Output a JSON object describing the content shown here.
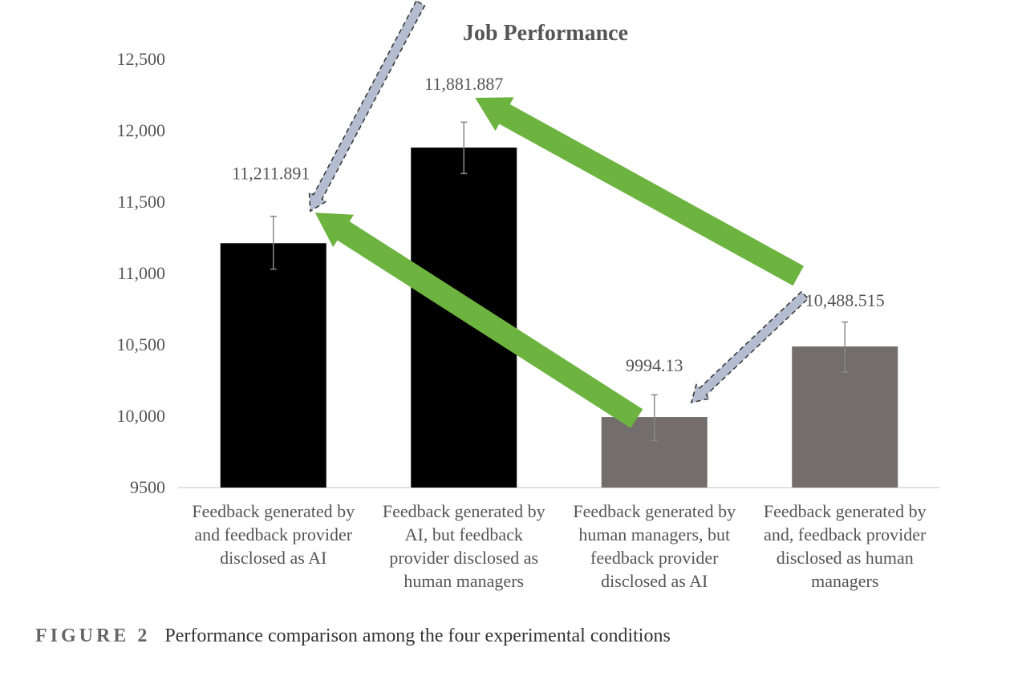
{
  "chart_data": {
    "type": "bar",
    "title": "Job Performance",
    "categories": [
      [
        "Feedback generated by",
        "and feedback provider",
        "disclosed as AI"
      ],
      [
        "Feedback generated by",
        "AI, but feedback",
        "provider disclosed as",
        "human managers"
      ],
      [
        "Feedback generated by",
        "human managers, but",
        "feedback provider",
        "disclosed as AI"
      ],
      [
        "Feedback generated by",
        "and, feedback provider",
        "disclosed as human",
        "managers"
      ]
    ],
    "values": [
      11211.891,
      11881.887,
      9994.13,
      10488.515
    ],
    "data_labels": [
      "11,211.891",
      "11,881.887",
      "9994.13",
      "10,488.515"
    ],
    "error_bars": [
      [
        11030,
        11400
      ],
      [
        11700,
        12060
      ],
      [
        9830,
        10150
      ],
      [
        10310,
        10660
      ]
    ],
    "bar_colors": [
      "#000000",
      "#000000",
      "#736e6d",
      "#736e6d"
    ],
    "ylim": [
      9500,
      12500
    ],
    "yticks": [
      9500,
      10000,
      10500,
      11000,
      11500,
      12000,
      12500
    ],
    "ytick_labels": [
      "9500",
      "10,000",
      "10,500",
      "11,000",
      "11,500",
      "12,000",
      "12,500"
    ],
    "grid": false,
    "arrows": [
      {
        "style": "solid",
        "color": "#6db33f",
        "from": 2,
        "to": 0
      },
      {
        "style": "solid",
        "color": "#6db33f",
        "from": 3,
        "to": 1
      },
      {
        "style": "dashed",
        "color": "#b4bcd0",
        "from": 1,
        "to": 0
      },
      {
        "style": "dashed",
        "color": "#b4bcd0",
        "from": 3,
        "to": 2
      }
    ]
  },
  "caption": {
    "figure_number": "FIGURE 2",
    "text": "Performance comparison among the four experimental conditions"
  }
}
